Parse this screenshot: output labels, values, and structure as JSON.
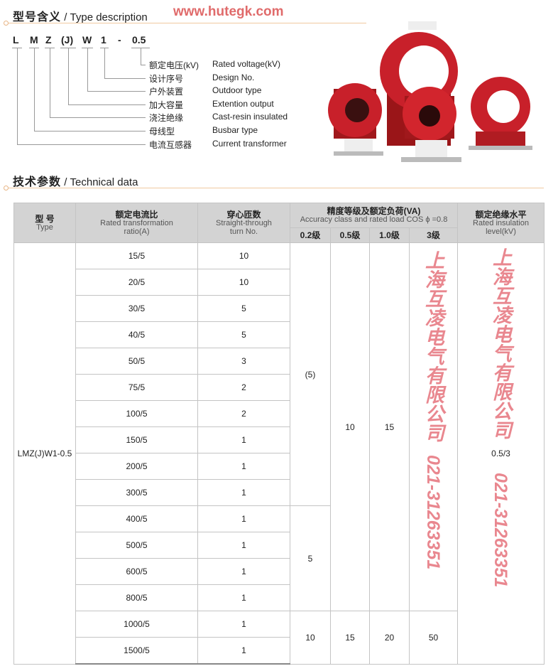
{
  "type_section": {
    "title_cn": "型号含义",
    "title_en": "/ Type description",
    "website": "www.hutegk.com"
  },
  "model_code": [
    "L",
    "M",
    "Z",
    "(J)",
    "W",
    "1",
    "-",
    "0.5"
  ],
  "meanings": [
    {
      "cn": "额定电压(kV)",
      "en": "Rated voltage(kV)"
    },
    {
      "cn": "设计序号",
      "en": "Design No."
    },
    {
      "cn": "户外装置",
      "en": "Outdoor type"
    },
    {
      "cn": "加大容量",
      "en": "Extention output"
    },
    {
      "cn": "浇注绝缘",
      "en": "Cast-resin insulated"
    },
    {
      "cn": "母线型",
      "en": "Busbar type"
    },
    {
      "cn": "电流互感器",
      "en": "Current transformer"
    }
  ],
  "tech_section": {
    "title_cn": "技术参数",
    "title_en": "/ Technical data"
  },
  "table": {
    "headers": {
      "type": {
        "cn": "型 号",
        "en": "Type"
      },
      "ratio": {
        "cn": "额定电流比",
        "en": "Rated transformation ratio(A)"
      },
      "turns": {
        "cn": "穿心匝数",
        "en": "Straight-through turn No."
      },
      "accuracy": {
        "cn": "精度等级及额定负荷(VA)",
        "en": "Accuracy class and rated load COS ϕ =0.8"
      },
      "classes": [
        "0.2级",
        "0.5级",
        "1.0级",
        "3级"
      ],
      "insulation": {
        "cn": "额定绝缘水平",
        "en": "Rated insulation level(kV)"
      }
    },
    "model": "LMZ(J)W1-0.5",
    "insulation_level": "0.5/3",
    "rows": [
      {
        "ratio": "15/5",
        "turns": "10"
      },
      {
        "ratio": "20/5",
        "turns": "10"
      },
      {
        "ratio": "30/5",
        "turns": "5"
      },
      {
        "ratio": "40/5",
        "turns": "5"
      },
      {
        "ratio": "50/5",
        "turns": "3"
      },
      {
        "ratio": "75/5",
        "turns": "2"
      },
      {
        "ratio": "100/5",
        "turns": "2"
      },
      {
        "ratio": "150/5",
        "turns": "1"
      },
      {
        "ratio": "200/5",
        "turns": "1"
      },
      {
        "ratio": "300/5",
        "turns": "1"
      },
      {
        "ratio": "400/5",
        "turns": "1"
      },
      {
        "ratio": "500/5",
        "turns": "1"
      },
      {
        "ratio": "600/5",
        "turns": "1"
      },
      {
        "ratio": "800/5",
        "turns": "1"
      },
      {
        "ratio": "1000/5",
        "turns": "1"
      },
      {
        "ratio": "1500/5",
        "turns": "1"
      }
    ],
    "loads": {
      "c02_a": "(5)",
      "c02_b": "5",
      "c02_c": "10",
      "c05_a": "10",
      "c05_b": "15",
      "c10_a": "15",
      "c10_b": "20",
      "c3_a": "",
      "c3_b": "50"
    }
  },
  "watermark": {
    "company": "上海互凌电气有限公司",
    "phone": "021-31263351"
  },
  "colors": {
    "product_red": "#c8202a",
    "watermark": "#e15f69",
    "header_gray": "#d3d3d3"
  }
}
